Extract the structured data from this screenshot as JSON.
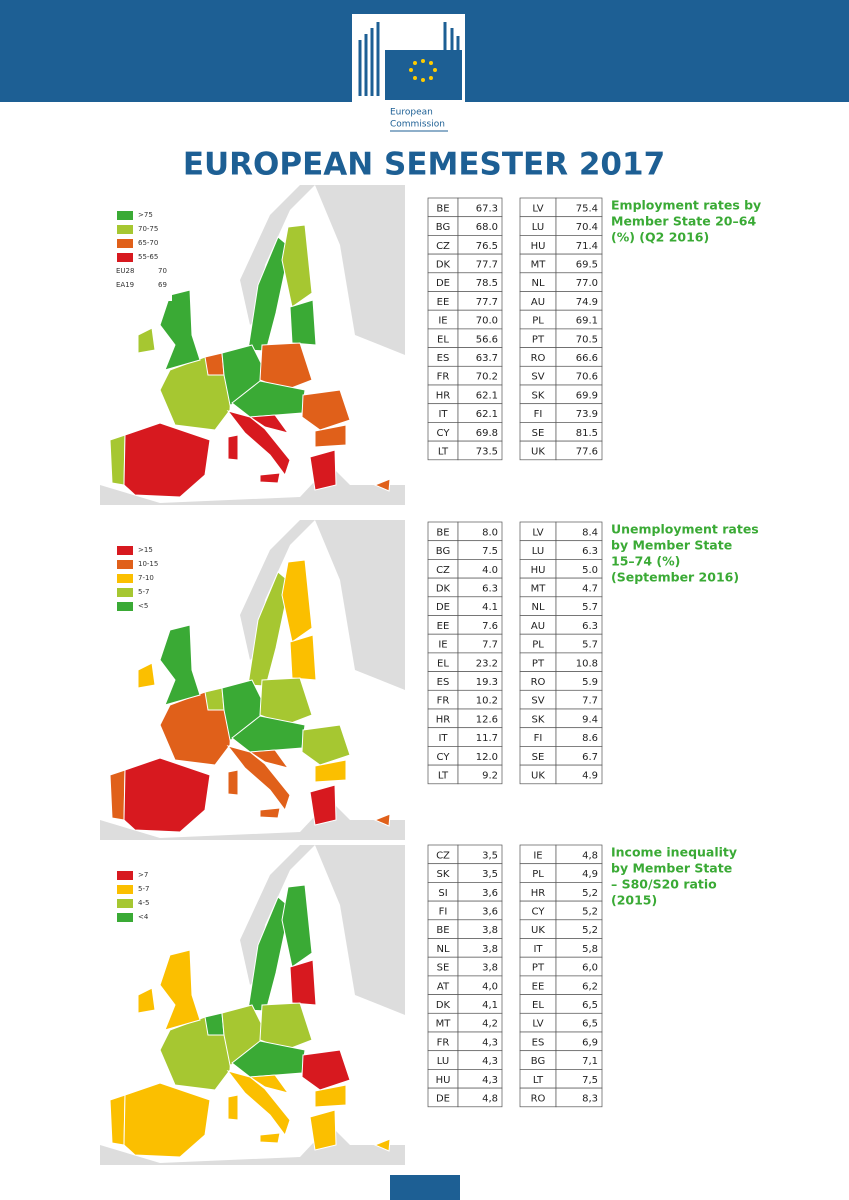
{
  "header": {
    "logo_text": [
      "European",
      "Commission"
    ]
  },
  "title": "EUROPEAN SEMESTER 2017",
  "sections": [
    {
      "heading": [
        "Employment rates by",
        "Member State 20–64",
        "(%) (Q2 2016)"
      ],
      "legend": [
        ">75",
        "70-75",
        "65-70",
        "55-65"
      ],
      "legend_extra": [
        [
          "EU28",
          "70"
        ],
        [
          "EA19",
          "69"
        ]
      ],
      "table_left": [
        [
          "BE",
          "67.3"
        ],
        [
          "BG",
          "68.0"
        ],
        [
          "CZ",
          "76.5"
        ],
        [
          "DK",
          "77.7"
        ],
        [
          "DE",
          "78.5"
        ],
        [
          "EE",
          "77.7"
        ],
        [
          "IE",
          "70.0"
        ],
        [
          "EL",
          "56.6"
        ],
        [
          "ES",
          "63.7"
        ],
        [
          "FR",
          "70.2"
        ],
        [
          "HR",
          "62.1"
        ],
        [
          "IT",
          "62.1"
        ],
        [
          "CY",
          "69.8"
        ],
        [
          "LT",
          "73.5"
        ]
      ],
      "table_right": [
        [
          "LV",
          "75.4"
        ],
        [
          "LU",
          "70.4"
        ],
        [
          "HU",
          "71.4"
        ],
        [
          "MT",
          "69.5"
        ],
        [
          "NL",
          "77.0"
        ],
        [
          "AU",
          "74.9"
        ],
        [
          "PL",
          "69.1"
        ],
        [
          "PT",
          "70.5"
        ],
        [
          "RO",
          "66.6"
        ],
        [
          "SV",
          "70.6"
        ],
        [
          "SK",
          "69.9"
        ],
        [
          "FI",
          "73.9"
        ],
        [
          "SE",
          "81.5"
        ],
        [
          "UK",
          "77.6"
        ]
      ]
    },
    {
      "heading": [
        "Unemployment rates",
        "by Member State",
        "15–74 (%)",
        "(September 2016)"
      ],
      "legend": [
        ">15",
        "10-15",
        "7-10",
        "5-7",
        "<5"
      ],
      "table_left": [
        [
          "BE",
          "8.0"
        ],
        [
          "BG",
          "7.5"
        ],
        [
          "CZ",
          "4.0"
        ],
        [
          "DK",
          "6.3"
        ],
        [
          "DE",
          "4.1"
        ],
        [
          "EE",
          "7.6"
        ],
        [
          "IE",
          "7.7"
        ],
        [
          "EL",
          "23.2"
        ],
        [
          "ES",
          "19.3"
        ],
        [
          "FR",
          "10.2"
        ],
        [
          "HR",
          "12.6"
        ],
        [
          "IT",
          "11.7"
        ],
        [
          "CY",
          "12.0"
        ],
        [
          "LT",
          "9.2"
        ]
      ],
      "table_right": [
        [
          "LV",
          "8.4"
        ],
        [
          "LU",
          "6.3"
        ],
        [
          "HU",
          "5.0"
        ],
        [
          "MT",
          "4.7"
        ],
        [
          "NL",
          "5.7"
        ],
        [
          "AU",
          "6.3"
        ],
        [
          "PL",
          "5.7"
        ],
        [
          "PT",
          "10.8"
        ],
        [
          "RO",
          "5.9"
        ],
        [
          "SV",
          "7.7"
        ],
        [
          "SK",
          "9.4"
        ],
        [
          "FI",
          "8.6"
        ],
        [
          "SE",
          "6.7"
        ],
        [
          "UK",
          "4.9"
        ]
      ]
    },
    {
      "heading": [
        "Income inequality",
        "by Member State",
        "– S80/S20 ratio",
        "(2015)"
      ],
      "legend": [
        ">7",
        "5-7",
        "4-5",
        "<4"
      ],
      "table_left": [
        [
          "CZ",
          "3,5"
        ],
        [
          "SK",
          "3,5"
        ],
        [
          "SI",
          "3,6"
        ],
        [
          "FI",
          "3,6"
        ],
        [
          "BE",
          "3,8"
        ],
        [
          "NL",
          "3,8"
        ],
        [
          "SE",
          "3,8"
        ],
        [
          "AT",
          "4,0"
        ],
        [
          "DK",
          "4,1"
        ],
        [
          "MT",
          "4,2"
        ],
        [
          "FR",
          "4,3"
        ],
        [
          "LU",
          "4,3"
        ],
        [
          "HU",
          "4,3"
        ],
        [
          "DE",
          "4,8"
        ]
      ],
      "table_right": [
        [
          "IE",
          "4,8"
        ],
        [
          "PL",
          "4,9"
        ],
        [
          "HR",
          "5,2"
        ],
        [
          "CY",
          "5,2"
        ],
        [
          "UK",
          "5,2"
        ],
        [
          "IT",
          "5,8"
        ],
        [
          "PT",
          "6,0"
        ],
        [
          "EE",
          "6,2"
        ],
        [
          "EL",
          "6,5"
        ],
        [
          "LV",
          "6,5"
        ],
        [
          "ES",
          "6,9"
        ],
        [
          "BG",
          "7,1"
        ],
        [
          "LT",
          "7,5"
        ],
        [
          "RO",
          "8,3"
        ]
      ]
    }
  ]
}
